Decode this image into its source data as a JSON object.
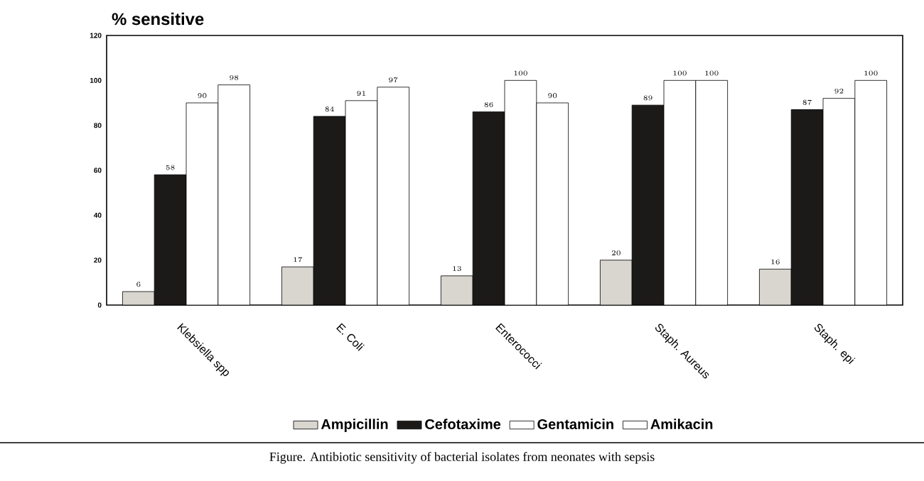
{
  "chart_data": {
    "type": "bar",
    "ylabel": "% sensitive",
    "categories": [
      "Klebsiella spp",
      "E. Coli",
      "Enterococci",
      "Staph. Aureus",
      "Staph. epi"
    ],
    "series": [
      {
        "name": "Ampicillin",
        "color": "#d9d6d0",
        "values": [
          6,
          17,
          13,
          20,
          16
        ]
      },
      {
        "name": "Cefotaxime",
        "color": "#1c1a18",
        "values": [
          58,
          84,
          86,
          89,
          87
        ]
      },
      {
        "name": "Gentamicin",
        "color": "#ffffff",
        "values": [
          90,
          91,
          100,
          100,
          92
        ]
      },
      {
        "name": "Amikacin",
        "color": "#ffffff",
        "values": [
          98,
          97,
          90,
          100,
          100
        ]
      }
    ],
    "ylim": [
      0,
      120
    ],
    "yticks": [
      0,
      20,
      40,
      60,
      80,
      100,
      120
    ],
    "data_labels": true,
    "legend": "bottom",
    "grid": false,
    "annotations": [
      "Figure. Antibiotic sensitivity of bacterial isolates from neonates with sepsis"
    ]
  }
}
